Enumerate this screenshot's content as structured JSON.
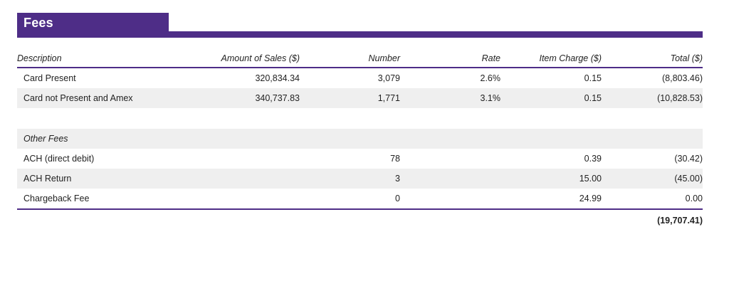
{
  "header": {
    "title": "Fees"
  },
  "columns": {
    "description": "Description",
    "amount": "Amount of Sales ($)",
    "number": "Number",
    "rate": "Rate",
    "item_charge": "Item Charge ($)",
    "total": "Total ($)"
  },
  "rows": [
    {
      "description": "Card Present",
      "amount": "320,834.34",
      "number": "3,079",
      "rate": "2.6%",
      "item_charge": "0.15",
      "total": "(8,803.46)"
    },
    {
      "description": "Card not Present and Amex",
      "amount": "340,737.83",
      "number": "1,771",
      "rate": "3.1%",
      "item_charge": "0.15",
      "total": "(10,828.53)"
    }
  ],
  "other_fees": {
    "label": "Other Fees",
    "rows": [
      {
        "description": "ACH (direct debit)",
        "number": "78",
        "item_charge": "0.39",
        "total": "(30.42)"
      },
      {
        "description": "ACH Return",
        "number": "3",
        "item_charge": "15.00",
        "total": "(45.00)"
      },
      {
        "description": "Chargeback Fee",
        "number": "0",
        "item_charge": "24.99",
        "total": "0.00"
      }
    ]
  },
  "grand_total": "(19,707.41)",
  "colors": {
    "accent": "#4e2d87",
    "row_shade": "#efefef"
  }
}
